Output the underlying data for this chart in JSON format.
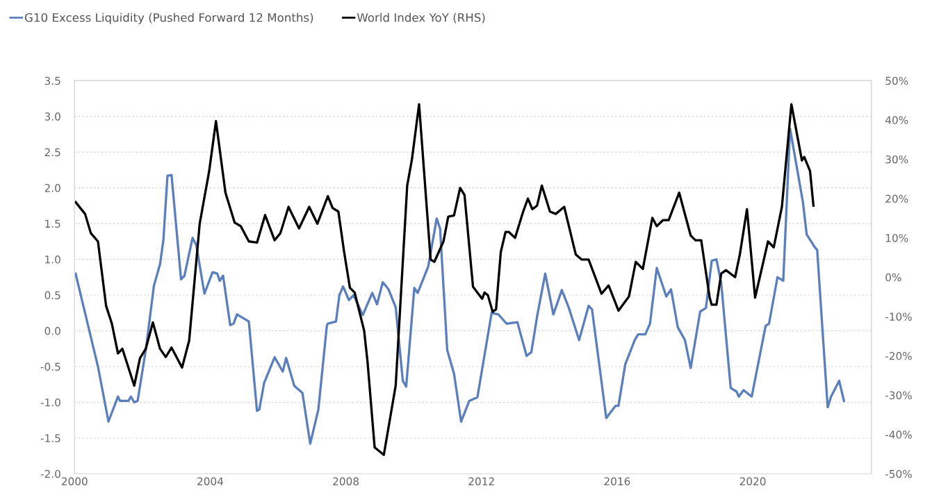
{
  "chart_data": {
    "type": "line",
    "legend": "top left",
    "grid": "y",
    "xlim": [
      2000,
      2023.5
    ],
    "xticks": [
      2000,
      2004,
      2008,
      2012,
      2016,
      2020
    ],
    "ylim": [
      -2.0,
      3.5
    ],
    "yticks": [
      {
        "value": -2,
        "label": "-2.0"
      },
      {
        "value": -1.5,
        "label": "-1.5"
      },
      {
        "value": -1,
        "label": "-1.0"
      },
      {
        "value": -0.5,
        "label": "-0.5"
      },
      {
        "value": 0,
        "label": "0.0"
      },
      {
        "value": 0.5,
        "label": "0.5"
      },
      {
        "value": 1,
        "label": "1.0"
      },
      {
        "value": 1.5,
        "label": "1.5"
      },
      {
        "value": 2,
        "label": "2.0"
      },
      {
        "value": 2.5,
        "label": "2.5"
      },
      {
        "value": 3,
        "label": "3.0"
      },
      {
        "value": 3.5,
        "label": "3.5"
      }
    ],
    "y2lim": [
      -50,
      50
    ],
    "y2ticks": [
      {
        "value": -50,
        "label": "-50%"
      },
      {
        "value": -40,
        "label": "-40%"
      },
      {
        "value": -30,
        "label": "-30%"
      },
      {
        "value": -20,
        "label": "-20%"
      },
      {
        "value": -10,
        "label": "-10%"
      },
      {
        "value": 0,
        "label": "0%"
      },
      {
        "value": 10,
        "label": "10%"
      },
      {
        "value": 20,
        "label": "20%"
      },
      {
        "value": 30,
        "label": "30%"
      },
      {
        "value": 40,
        "label": "40%"
      },
      {
        "value": 50,
        "label": "50%"
      }
    ],
    "series": [
      {
        "name": "G10 Excess Liquidity (Pushed Forward 12 Months)",
        "color": "#5b7fbd",
        "x": [
          2000.03,
          2000.69,
          2001.0,
          2001.28,
          2001.34,
          2001.59,
          2001.66,
          2001.76,
          2001.86,
          2002.1,
          2002.34,
          2002.52,
          2002.62,
          2002.74,
          2002.86,
          2003.14,
          2003.24,
          2003.48,
          2003.59,
          2003.83,
          2004.07,
          2004.21,
          2004.28,
          2004.38,
          2004.59,
          2004.69,
          2004.79,
          2005.14,
          2005.38,
          2005.45,
          2005.59,
          2005.9,
          2006.14,
          2006.24,
          2006.48,
          2006.72,
          2006.95,
          2007.19,
          2007.44,
          2007.47,
          2007.71,
          2007.81,
          2007.92,
          2008.09,
          2008.23,
          2008.5,
          2008.78,
          2008.92,
          2009.09,
          2009.26,
          2009.47,
          2009.68,
          2009.78,
          2010.02,
          2010.12,
          2010.43,
          2010.68,
          2010.78,
          2010.99,
          2011.19,
          2011.4,
          2011.64,
          2011.88,
          2012.3,
          2012.5,
          2012.74,
          2013.06,
          2013.33,
          2013.47,
          2013.64,
          2013.88,
          2014.12,
          2014.37,
          2014.57,
          2014.88,
          2015.16,
          2015.26,
          2015.68,
          2015.95,
          2016.04,
          2016.24,
          2016.52,
          2016.62,
          2016.83,
          2016.97,
          2017.17,
          2017.45,
          2017.59,
          2017.79,
          2018.0,
          2018.17,
          2018.45,
          2018.62,
          2018.79,
          2018.93,
          2019.07,
          2019.35,
          2019.52,
          2019.59,
          2019.73,
          2019.97,
          2020.38,
          2020.48,
          2020.73,
          2020.9,
          2021.1,
          2021.48,
          2021.59,
          2021.83,
          2021.9,
          2022.21,
          2022.31,
          2022.55,
          2022.69
        ],
        "values": [
          0.8,
          -0.5,
          -1.27,
          -0.92,
          -0.98,
          -0.98,
          -0.92,
          -1.0,
          -0.98,
          -0.27,
          0.63,
          0.93,
          1.27,
          2.17,
          2.18,
          0.72,
          0.77,
          1.3,
          1.2,
          0.52,
          0.82,
          0.8,
          0.7,
          0.77,
          0.08,
          0.1,
          0.23,
          0.13,
          -1.12,
          -1.1,
          -0.73,
          -0.37,
          -0.57,
          -0.38,
          -0.77,
          -0.87,
          -1.58,
          -1.1,
          0.07,
          0.1,
          0.13,
          0.5,
          0.62,
          0.43,
          0.5,
          0.22,
          0.53,
          0.37,
          0.68,
          0.58,
          0.33,
          -0.7,
          -0.78,
          0.6,
          0.53,
          0.9,
          1.57,
          1.43,
          -0.27,
          -0.6,
          -1.27,
          -0.98,
          -0.93,
          0.25,
          0.23,
          0.1,
          0.12,
          -0.35,
          -0.3,
          0.2,
          0.8,
          0.23,
          0.57,
          0.33,
          -0.13,
          0.35,
          0.3,
          -1.22,
          -1.05,
          -1.05,
          -0.47,
          -0.13,
          -0.05,
          -0.05,
          0.1,
          0.88,
          0.48,
          0.58,
          0.05,
          -0.13,
          -0.52,
          0.27,
          0.32,
          0.98,
          1.0,
          0.67,
          -0.8,
          -0.85,
          -0.92,
          -0.83,
          -0.92,
          0.07,
          0.1,
          0.75,
          0.7,
          2.83,
          1.8,
          1.35,
          1.17,
          1.13,
          -1.07,
          -0.92,
          -0.7,
          -0.98
        ]
      },
      {
        "name": "World Index YoY (RHS)",
        "color": "#000000",
        "axis": "y2",
        "x": [
          2000.03,
          2000.31,
          2000.48,
          2000.69,
          2000.93,
          2001.1,
          2001.28,
          2001.41,
          2001.76,
          2001.93,
          2002.1,
          2002.31,
          2002.52,
          2002.69,
          2002.86,
          2003.17,
          2003.38,
          2003.69,
          2003.97,
          2004.17,
          2004.45,
          2004.72,
          2004.9,
          2005.14,
          2005.38,
          2005.62,
          2005.9,
          2006.07,
          2006.31,
          2006.62,
          2006.92,
          2007.16,
          2007.47,
          2007.61,
          2007.78,
          2007.95,
          2008.12,
          2008.26,
          2008.54,
          2008.64,
          2008.85,
          2009.12,
          2009.47,
          2009.81,
          2009.95,
          2010.16,
          2010.5,
          2010.61,
          2010.88,
          2011.02,
          2011.19,
          2011.37,
          2011.5,
          2011.75,
          2012.02,
          2012.09,
          2012.19,
          2012.33,
          2012.43,
          2012.57,
          2012.71,
          2012.81,
          2012.99,
          2013.23,
          2013.37,
          2013.5,
          2013.64,
          2013.78,
          2014.02,
          2014.19,
          2014.44,
          2014.78,
          2014.95,
          2015.16,
          2015.54,
          2015.75,
          2016.04,
          2016.35,
          2016.55,
          2016.76,
          2017.04,
          2017.17,
          2017.35,
          2017.52,
          2017.83,
          2018.17,
          2018.31,
          2018.48,
          2018.73,
          2018.79,
          2018.93,
          2019.07,
          2019.21,
          2019.48,
          2019.62,
          2019.83,
          2020.07,
          2020.45,
          2020.62,
          2020.86,
          2021.14,
          2021.45,
          2021.52,
          2021.69,
          2021.79
        ],
        "values": [
          19.1,
          16.1,
          11.2,
          9.1,
          -7.3,
          -11.8,
          -19.4,
          -18.2,
          -27.6,
          -20.6,
          -18.2,
          -11.5,
          -18.2,
          -20.3,
          -17.9,
          -23.0,
          -16.1,
          13.6,
          27.0,
          39.7,
          21.5,
          13.9,
          13.0,
          9.1,
          8.8,
          15.8,
          9.4,
          11.2,
          17.9,
          12.4,
          17.9,
          13.6,
          20.6,
          17.6,
          16.7,
          6.4,
          -2.7,
          -3.9,
          -13.6,
          -21.5,
          -43.3,
          -45.2,
          -27.6,
          23.3,
          30.0,
          44.0,
          4.5,
          3.9,
          9.1,
          15.4,
          15.7,
          22.7,
          20.9,
          -2.4,
          -5.5,
          -3.9,
          -4.6,
          -8.8,
          -8.2,
          6.4,
          11.5,
          11.5,
          10.0,
          16.7,
          20.0,
          17.3,
          18.2,
          23.3,
          16.7,
          16.1,
          17.9,
          5.8,
          4.5,
          4.5,
          -4.2,
          -2.1,
          -8.5,
          -4.9,
          3.9,
          2.1,
          15.1,
          13.0,
          14.5,
          14.5,
          21.5,
          10.6,
          9.4,
          9.4,
          -5.2,
          -7.0,
          -7.0,
          0.9,
          1.8,
          0.0,
          5.8,
          17.3,
          -5.2,
          9.1,
          7.6,
          17.9,
          44.0,
          29.7,
          30.6,
          27.0,
          18.2
        ]
      }
    ]
  }
}
